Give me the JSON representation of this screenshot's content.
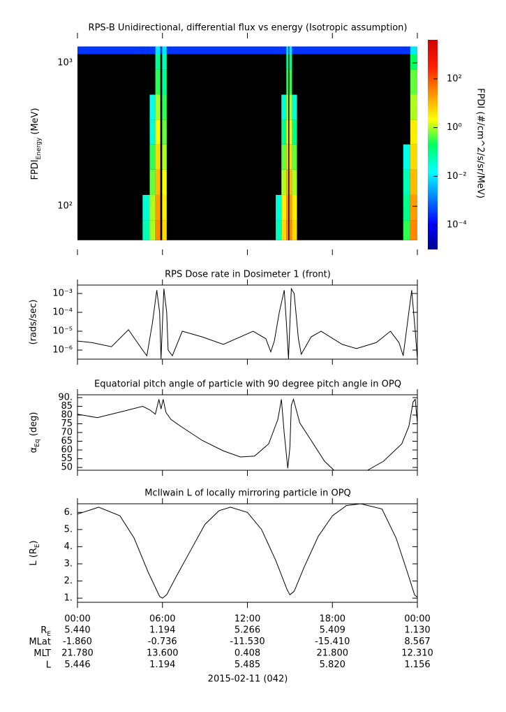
{
  "chart_data": [
    {
      "type": "heatmap",
      "title": "RPS-B  Unidirectional, differential flux vs energy (Isotropic assumption)",
      "ylabel": [
        "FPDI",
        "Energy",
        " (MeV)"
      ],
      "zlabel": "FPDI (#/cm^2/s/sr/MeV)",
      "xlim": [
        0,
        24
      ],
      "xticks": [
        {
          "value": 0,
          "label": "00:00"
        },
        {
          "value": 6,
          "label": "06:00"
        },
        {
          "value": 12,
          "label": "12:00"
        },
        {
          "value": 18,
          "label": "18:00"
        },
        {
          "value": 24,
          "label": "00:00"
        }
      ],
      "ylim": [
        50,
        1480
      ],
      "ylog": true,
      "yticks": [
        {
          "value": 100,
          "label": "10²"
        },
        {
          "value": 1000,
          "label": "10³"
        }
      ],
      "zlim": [
        1e-05,
        4000
      ],
      "zlog": true,
      "colormap": "jet",
      "zticks": [
        {
          "value": 0.0001,
          "label": "10⁻⁴"
        },
        {
          "value": 0.01,
          "label": "10⁻²"
        },
        {
          "value": 1,
          "label": "10⁰"
        },
        {
          "value": 100,
          "label": "10²"
        }
      ],
      "x_edges": [
        0,
        4.6,
        5.1,
        5.5,
        5.85,
        5.98,
        6.3,
        14.0,
        14.4,
        14.75,
        14.88,
        14.96,
        15.15,
        15.5,
        23.0,
        23.5,
        24
      ],
      "y_edges": [
        58,
        80,
        120,
        180,
        270,
        400,
        600,
        900,
        1150,
        1300
      ],
      "z": [
        [
          null,
          null,
          null,
          null,
          null,
          null,
          null,
          null,
          0.0003
        ],
        [
          0.05,
          0.03,
          null,
          null,
          null,
          null,
          null,
          null,
          0.0003
        ],
        [
          1,
          1,
          0.5,
          0.3,
          0.03,
          0.02,
          null,
          null,
          0.0003
        ],
        [
          30,
          20,
          10,
          5,
          2,
          1,
          0.3,
          0.1,
          0.01
        ],
        [
          null,
          null,
          null,
          null,
          null,
          null,
          null,
          null,
          0.0003
        ],
        [
          5,
          3,
          2,
          1,
          0.5,
          0.3,
          0.1,
          0.05,
          0.01
        ],
        [
          null,
          null,
          null,
          null,
          null,
          null,
          null,
          null,
          0.0003
        ],
        [
          0.05,
          0.03,
          null,
          null,
          null,
          null,
          null,
          null,
          0.0003
        ],
        [
          5,
          3,
          1,
          0.5,
          0.1,
          0.03,
          null,
          null,
          0.0003
        ],
        [
          30,
          20,
          10,
          5,
          3,
          1,
          0.3,
          0.1,
          0.01
        ],
        [
          null,
          null,
          null,
          null,
          null,
          null,
          null,
          null,
          0.0003
        ],
        [
          30,
          20,
          10,
          5,
          3,
          1,
          0.3,
          0.1,
          0.01
        ],
        [
          5,
          3,
          1,
          0.5,
          0.1,
          0.03,
          null,
          null,
          0.0003
        ],
        [
          null,
          null,
          null,
          null,
          null,
          null,
          null,
          null,
          0.0003
        ],
        [
          0.3,
          0.1,
          0.05,
          0.02,
          null,
          null,
          null,
          null,
          0.0003
        ],
        [
          30,
          20,
          10,
          5,
          3,
          1,
          0.5,
          0.2,
          0.01
        ]
      ]
    },
    {
      "type": "line",
      "title": "RPS  Dose rate in Dosimeter 1 (front)",
      "ylabel": "(rads/sec)",
      "xlim": [
        0,
        24
      ],
      "xticks": [
        {
          "value": 0,
          "label": "00:00"
        },
        {
          "value": 6,
          "label": "06:00"
        },
        {
          "value": 12,
          "label": "12:00"
        },
        {
          "value": 18,
          "label": "18:00"
        },
        {
          "value": 24,
          "label": "00:00"
        }
      ],
      "ylim": [
        3.3e-07,
        0.0028
      ],
      "ylog": true,
      "yticks": [
        {
          "value": 1e-06,
          "label": "10⁻⁶"
        },
        {
          "value": 1e-05,
          "label": "10⁻⁵"
        },
        {
          "value": 0.0001,
          "label": "10⁻⁴"
        },
        {
          "value": 0.001,
          "label": "10⁻³"
        }
      ],
      "color": "#000000",
      "x": [
        0,
        1,
        2.4,
        3.6,
        4.6,
        4.9,
        5.3,
        5.6,
        5.8,
        5.9,
        6.1,
        6.3,
        6.4,
        6.7,
        7.4,
        8.8,
        10.3,
        11.5,
        12.4,
        13.3,
        13.65,
        13.9,
        14.25,
        14.6,
        14.75,
        14.9,
        15.1,
        15.3,
        15.6,
        15.8,
        16.5,
        17.2,
        18.7,
        19.7,
        21.1,
        22.1,
        22.7,
        23.0,
        23.6,
        23.85,
        24
      ],
      "values": [
        3e-06,
        2.5e-06,
        1.5e-06,
        1.2e-05,
        1e-06,
        5e-07,
        3e-05,
        0.0015,
        0.0001,
        3.5e-07,
        0.0018,
        0.0001,
        1e-06,
        5e-07,
        1e-05,
        5e-06,
        2e-06,
        5e-06,
        1e-05,
        4e-06,
        8e-07,
        3e-06,
        0.0001,
        0.0015,
        3e-05,
        3.5e-07,
        0.0018,
        0.001,
        4e-06,
        6e-07,
        5e-06,
        1e-05,
        2e-06,
        1.2e-06,
        2.5e-06,
        1e-05,
        2.5e-06,
        5e-07,
        0.0015,
        1e-05,
        3.5e-07
      ]
    },
    {
      "type": "line",
      "title": "Equatorial pitch angle of particle with 90 degree pitch angle in OPQ",
      "ylabel": [
        "α",
        "Eq",
        " (deg)"
      ],
      "xlim": [
        0,
        24
      ],
      "xticks": [
        {
          "value": 0,
          "label": "00:00"
        },
        {
          "value": 6,
          "label": "06:00"
        },
        {
          "value": 12,
          "label": "12:00"
        },
        {
          "value": 18,
          "label": "18:00"
        },
        {
          "value": 24,
          "label": "00:00"
        }
      ],
      "ylim": [
        48.4,
        91.6
      ],
      "yticks": [
        50,
        55,
        60,
        65,
        70,
        75,
        80,
        85,
        {
          "value": 90,
          "label": "90."
        }
      ],
      "color": "#000000",
      "x": [
        0,
        1.4,
        3.4,
        4.6,
        5.1,
        5.5,
        5.75,
        5.9,
        6.05,
        6.25,
        6.6,
        7.3,
        8.8,
        10.3,
        11.5,
        12.5,
        13.5,
        14.15,
        14.4,
        14.6,
        14.85,
        15.0,
        15.1,
        15.25,
        15.7,
        16.5,
        17.45,
        18.1,
        19.3,
        20.5,
        21.6,
        22.9,
        23.4,
        23.7,
        23.85,
        24
      ],
      "values": [
        80.5,
        78.5,
        82.5,
        85,
        83,
        80.5,
        89,
        83.5,
        89,
        81.5,
        77.5,
        73.5,
        65.5,
        59.5,
        56,
        56.5,
        63.5,
        77.5,
        89,
        69.5,
        49.5,
        61.5,
        85.5,
        89,
        75.5,
        65.5,
        53.5,
        48.5,
        null,
        48.5,
        53.5,
        63.5,
        73.5,
        87.5,
        89,
        75.5
      ]
    },
    {
      "type": "line",
      "title": "McIlwain L of locally mirroring particle in OPQ",
      "ylabel": [
        "L (R",
        "E",
        ")"
      ],
      "xlim": [
        0,
        24
      ],
      "xticks": [
        {
          "value": 0,
          "label": "00:00"
        },
        {
          "value": 6,
          "label": "06:00"
        },
        {
          "value": 12,
          "label": "12:00"
        },
        {
          "value": 18,
          "label": "18:00"
        },
        {
          "value": 24,
          "label": "00:00"
        }
      ],
      "ylim": [
        0.76,
        6.5
      ],
      "yticks": [
        {
          "value": 1,
          "label": "1."
        },
        {
          "value": 2,
          "label": "2."
        },
        {
          "value": 3,
          "label": "3."
        },
        {
          "value": 4,
          "label": "4."
        },
        {
          "value": 5,
          "label": "5."
        },
        {
          "value": 6,
          "label": "6."
        }
      ],
      "color": "#000000",
      "x": [
        0,
        1.5,
        3,
        4,
        5,
        5.8,
        6,
        6.3,
        7,
        8,
        9,
        10,
        10.8,
        12,
        13,
        14,
        14.8,
        15,
        15.3,
        16,
        17,
        18,
        19,
        20,
        21.5,
        22.5,
        23.3,
        23.8,
        24
      ],
      "values": [
        5.9,
        6.3,
        5.8,
        4.5,
        2.5,
        1.1,
        1.0,
        1.2,
        2.3,
        3.8,
        5.3,
        6.1,
        6.3,
        6.0,
        5.0,
        3.2,
        1.5,
        1.2,
        1.4,
        2.8,
        4.6,
        5.8,
        6.4,
        6.5,
        6.2,
        4.5,
        2.5,
        1.2,
        1.05
      ]
    }
  ],
  "ephemeris": [
    {
      "label": [
        "R",
        "E"
      ],
      "values": [
        "5.440",
        "1.194",
        "5.266",
        "5.409",
        "1.130"
      ]
    },
    {
      "label": [
        "MLat"
      ],
      "values": [
        "-1.860",
        "-0.736",
        "-11.530",
        "-15.410",
        "8.567"
      ]
    },
    {
      "label": [
        "MLT"
      ],
      "values": [
        "21.780",
        "13.600",
        "0.408",
        "21.800",
        "12.310"
      ]
    },
    {
      "label": [
        "L"
      ],
      "values": [
        "5.446",
        "1.194",
        "5.485",
        "5.820",
        "1.156"
      ]
    }
  ],
  "date": "2015-02-11 (042)"
}
